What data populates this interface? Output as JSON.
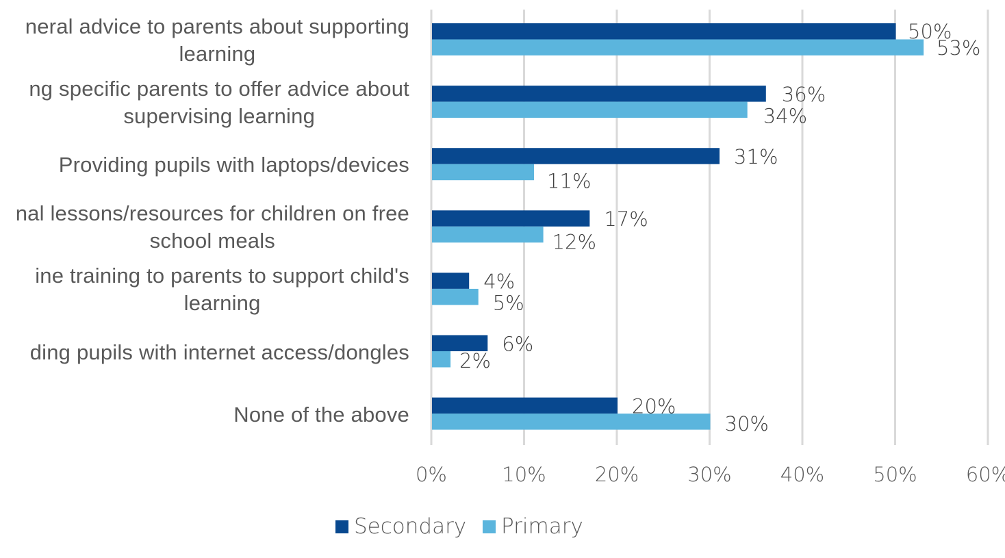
{
  "chart_data": {
    "type": "bar",
    "orientation": "horizontal",
    "title": "",
    "xlabel": "",
    "ylabel": "",
    "categories": [
      [
        "neral advice to parents about supporting",
        "learning"
      ],
      [
        "ng specific parents to offer advice about",
        "supervising learning"
      ],
      [
        "Providing pupils with laptops/devices"
      ],
      [
        "nal lessons/resources for children on free",
        "school meals"
      ],
      [
        "ine training to parents to support child's",
        "learning"
      ],
      [
        "ding pupils with internet access/dongles"
      ],
      [
        "None of the above"
      ]
    ],
    "series": [
      {
        "name": "Secondary",
        "color": "#08488F",
        "values": [
          50,
          36,
          31,
          17,
          4,
          6,
          20
        ],
        "labels": [
          "50%",
          "36%",
          "31%",
          "17%",
          "4%",
          "6%",
          "20%"
        ]
      },
      {
        "name": "Primary",
        "color": "#5BB5DD",
        "values": [
          53,
          34,
          11,
          12,
          5,
          2,
          30
        ],
        "labels": [
          "53%",
          "34%",
          "11%",
          "12%",
          "5%",
          "2%",
          "30%"
        ]
      }
    ],
    "xlim": [
      0,
      60
    ],
    "xticks": [
      0,
      10,
      20,
      30,
      40,
      50,
      60
    ],
    "xtick_labels": [
      "0%",
      "10%",
      "20%",
      "30%",
      "40%",
      "50%",
      "60%"
    ],
    "grid": true,
    "gridline_color": "#D9D9D9",
    "text_color": "#595959",
    "data_label_color": "#404040",
    "legend": {
      "position": "bottom",
      "entries": [
        "Secondary",
        "Primary"
      ]
    }
  }
}
